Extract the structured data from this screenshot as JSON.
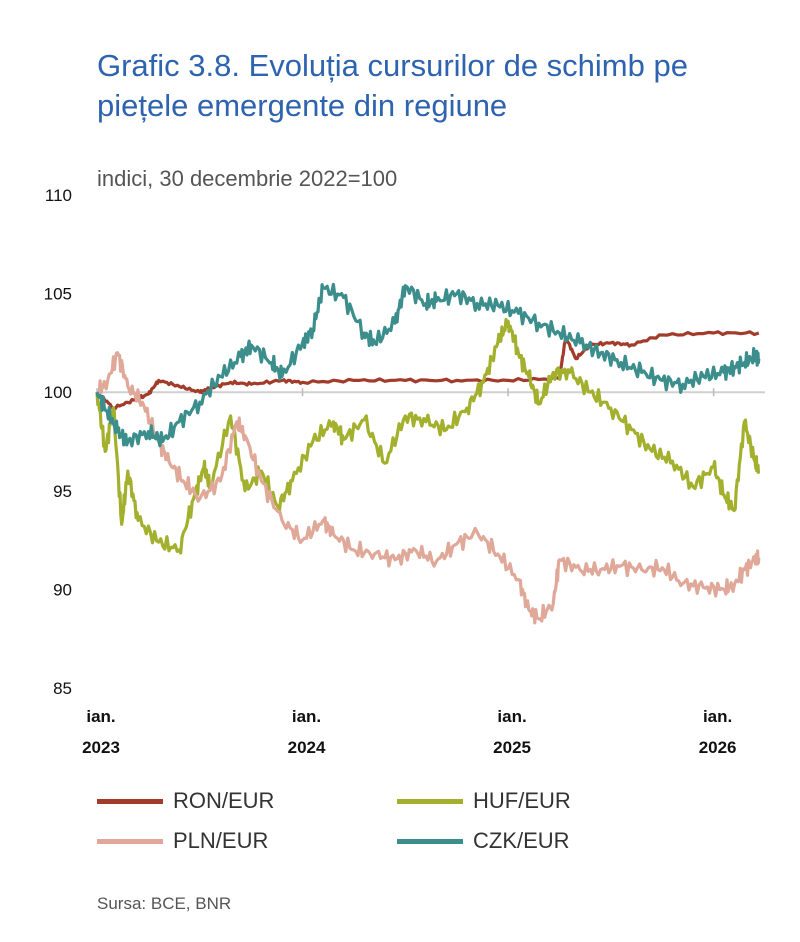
{
  "title": "Grafic 3.8. Evoluția cursurilor de schimb pe piețele emergente din regiune",
  "subtitle": "indici, 30 decembrie 2022=100",
  "source": "Sursa: BCE, BNR",
  "chart_data": {
    "type": "line",
    "ylim": [
      85,
      110
    ],
    "yticks": [
      110,
      105,
      100,
      95,
      90,
      85
    ],
    "xlim": [
      2023.0,
      2026.25
    ],
    "xticks": [
      {
        "x": 2023.0,
        "label": [
          "ian.",
          "2023"
        ]
      },
      {
        "x": 2024.0,
        "label": [
          "ian.",
          "2024"
        ]
      },
      {
        "x": 2025.0,
        "label": [
          "ian.",
          "2025"
        ]
      },
      {
        "x": 2026.0,
        "label": [
          "ian.",
          "2026"
        ]
      }
    ],
    "series": [
      {
        "name": "RON/EUR",
        "color": "#a33b2b",
        "points": [
          [
            2023.0,
            100.0
          ],
          [
            2023.08,
            99.2
          ],
          [
            2023.18,
            99.6
          ],
          [
            2023.25,
            99.9
          ],
          [
            2023.3,
            100.6
          ],
          [
            2023.4,
            100.3
          ],
          [
            2023.5,
            100.0
          ],
          [
            2023.55,
            100.2
          ],
          [
            2023.65,
            100.5
          ],
          [
            2023.75,
            100.4
          ],
          [
            2023.9,
            100.6
          ],
          [
            2024.0,
            100.5
          ],
          [
            2024.25,
            100.6
          ],
          [
            2024.5,
            100.6
          ],
          [
            2024.75,
            100.6
          ],
          [
            2025.0,
            100.6
          ],
          [
            2025.25,
            100.7
          ],
          [
            2025.28,
            102.8
          ],
          [
            2025.33,
            101.7
          ],
          [
            2025.4,
            102.4
          ],
          [
            2025.5,
            102.5
          ],
          [
            2025.6,
            102.4
          ],
          [
            2025.75,
            102.9
          ],
          [
            2026.0,
            103.0
          ],
          [
            2026.22,
            103.0
          ]
        ]
      },
      {
        "name": "HUF/EUR",
        "color": "#a3b02e",
        "points": [
          [
            2023.0,
            100.0
          ],
          [
            2023.04,
            97.0
          ],
          [
            2023.08,
            99.2
          ],
          [
            2023.12,
            93.3
          ],
          [
            2023.15,
            96.0
          ],
          [
            2023.2,
            93.5
          ],
          [
            2023.3,
            92.4
          ],
          [
            2023.4,
            92.0
          ],
          [
            2023.47,
            94.6
          ],
          [
            2023.52,
            96.2
          ],
          [
            2023.55,
            95.2
          ],
          [
            2023.65,
            98.8
          ],
          [
            2023.72,
            95.0
          ],
          [
            2023.8,
            96.0
          ],
          [
            2023.88,
            94.2
          ],
          [
            2023.95,
            95.5
          ],
          [
            2024.05,
            97.5
          ],
          [
            2024.15,
            98.5
          ],
          [
            2024.2,
            97.6
          ],
          [
            2024.3,
            98.6
          ],
          [
            2024.4,
            96.4
          ],
          [
            2024.5,
            98.8
          ],
          [
            2024.6,
            98.5
          ],
          [
            2024.7,
            98.1
          ],
          [
            2024.8,
            99.2
          ],
          [
            2024.88,
            100.5
          ],
          [
            2024.95,
            102.5
          ],
          [
            2025.0,
            103.6
          ],
          [
            2025.05,
            102.0
          ],
          [
            2025.1,
            100.8
          ],
          [
            2025.15,
            99.4
          ],
          [
            2025.22,
            101.0
          ],
          [
            2025.3,
            101.0
          ],
          [
            2025.4,
            100.0
          ],
          [
            2025.5,
            99.2
          ],
          [
            2025.6,
            98.1
          ],
          [
            2025.7,
            97.0
          ],
          [
            2025.8,
            96.5
          ],
          [
            2025.9,
            95.2
          ],
          [
            2026.0,
            96.2
          ],
          [
            2026.05,
            94.8
          ],
          [
            2026.1,
            94.0
          ],
          [
            2026.15,
            98.5
          ],
          [
            2026.2,
            96.5
          ],
          [
            2026.22,
            96.0
          ]
        ]
      },
      {
        "name": "PLN/EUR",
        "color": "#e0a898",
        "points": [
          [
            2023.0,
            100.0
          ],
          [
            2023.05,
            100.5
          ],
          [
            2023.1,
            102.0
          ],
          [
            2023.15,
            100.3
          ],
          [
            2023.22,
            99.5
          ],
          [
            2023.3,
            97.5
          ],
          [
            2023.35,
            96.5
          ],
          [
            2023.42,
            95.5
          ],
          [
            2023.5,
            94.6
          ],
          [
            2023.6,
            95.5
          ],
          [
            2023.68,
            98.5
          ],
          [
            2023.72,
            97.8
          ],
          [
            2023.8,
            95.5
          ],
          [
            2023.9,
            93.5
          ],
          [
            2024.0,
            92.5
          ],
          [
            2024.1,
            93.5
          ],
          [
            2024.15,
            92.8
          ],
          [
            2024.25,
            92.0
          ],
          [
            2024.35,
            91.8
          ],
          [
            2024.45,
            91.5
          ],
          [
            2024.55,
            92.0
          ],
          [
            2024.65,
            91.4
          ],
          [
            2024.75,
            92.3
          ],
          [
            2024.85,
            92.9
          ],
          [
            2024.95,
            91.8
          ],
          [
            2025.05,
            90.5
          ],
          [
            2025.1,
            89.0
          ],
          [
            2025.15,
            88.5
          ],
          [
            2025.22,
            89.3
          ],
          [
            2025.25,
            91.5
          ],
          [
            2025.35,
            91.0
          ],
          [
            2025.45,
            91.0
          ],
          [
            2025.55,
            91.2
          ],
          [
            2025.65,
            91.0
          ],
          [
            2025.75,
            91.1
          ],
          [
            2025.85,
            90.3
          ],
          [
            2025.95,
            90.1
          ],
          [
            2026.05,
            90.0
          ],
          [
            2026.1,
            90.2
          ],
          [
            2026.15,
            91.0
          ],
          [
            2026.2,
            91.5
          ],
          [
            2026.22,
            91.6
          ]
        ]
      },
      {
        "name": "CZK/EUR",
        "color": "#3c8e8c",
        "points": [
          [
            2023.0,
            100.0
          ],
          [
            2023.05,
            99.0
          ],
          [
            2023.1,
            98.0
          ],
          [
            2023.15,
            97.5
          ],
          [
            2023.25,
            98.0
          ],
          [
            2023.32,
            97.5
          ],
          [
            2023.4,
            98.5
          ],
          [
            2023.5,
            99.5
          ],
          [
            2023.6,
            100.8
          ],
          [
            2023.7,
            101.8
          ],
          [
            2023.75,
            102.4
          ],
          [
            2023.85,
            101.5
          ],
          [
            2023.9,
            100.8
          ],
          [
            2024.0,
            102.5
          ],
          [
            2024.05,
            103.2
          ],
          [
            2024.1,
            105.3
          ],
          [
            2024.2,
            104.8
          ],
          [
            2024.3,
            103.0
          ],
          [
            2024.35,
            102.5
          ],
          [
            2024.45,
            103.5
          ],
          [
            2024.5,
            105.4
          ],
          [
            2024.6,
            104.5
          ],
          [
            2024.65,
            104.6
          ],
          [
            2024.75,
            105.0
          ],
          [
            2024.85,
            104.5
          ],
          [
            2024.95,
            104.4
          ],
          [
            2025.05,
            104.0
          ],
          [
            2025.15,
            103.5
          ],
          [
            2025.25,
            103.0
          ],
          [
            2025.35,
            102.5
          ],
          [
            2025.45,
            102.0
          ],
          [
            2025.55,
            101.5
          ],
          [
            2025.65,
            101.0
          ],
          [
            2025.75,
            100.6
          ],
          [
            2025.85,
            100.4
          ],
          [
            2025.95,
            100.8
          ],
          [
            2026.05,
            101.0
          ],
          [
            2026.1,
            101.3
          ],
          [
            2026.15,
            101.5
          ],
          [
            2026.2,
            101.8
          ],
          [
            2026.22,
            101.7
          ]
        ]
      }
    ]
  }
}
